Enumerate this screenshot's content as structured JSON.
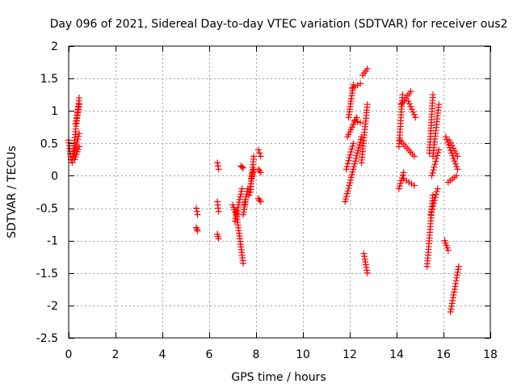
{
  "chart_data": {
    "type": "scatter",
    "title": "Day 096 of 2021, Sidereal Day-to-day VTEC variation (SDTVAR) for receiver ous2",
    "xlabel": "GPS time / hours",
    "ylabel": "SDTVAR / TECUs",
    "xlim": [
      0,
      18
    ],
    "ylim": [
      -2.5,
      2
    ],
    "xticks": [
      0,
      2,
      4,
      6,
      8,
      10,
      12,
      14,
      16,
      18
    ],
    "yticks": [
      2,
      1.5,
      1,
      0.5,
      0,
      -0.5,
      -1,
      -1.5,
      -2,
      -2.5
    ],
    "xtick_labels": [
      "0",
      "2",
      "4",
      "6",
      "8",
      "10",
      "12",
      "14",
      "16",
      "18"
    ],
    "ytick_labels": [
      "2",
      "1.5",
      "1",
      "0.5",
      "0",
      "-0.5",
      "-1",
      "-1.5",
      "-2",
      "-2.5"
    ],
    "grid": true,
    "marker": "+",
    "color": "#ff0000",
    "series": [
      {
        "name": "SDTVAR",
        "segments": [
          {
            "x": [
              0.0,
              0.1
            ],
            "y": [
              0.55,
              0.25
            ]
          },
          {
            "x": [
              0.15,
              0.45
            ],
            "y": [
              0.2,
              1.2
            ]
          },
          {
            "x": [
              0.2,
              0.45
            ],
            "y": [
              0.3,
              0.65
            ]
          },
          {
            "x": [
              0.25,
              0.45
            ],
            "y": [
              0.25,
              0.45
            ]
          },
          {
            "x": [
              0.3,
              0.45
            ],
            "y": [
              0.8,
              1.1
            ]
          },
          {
            "x": [
              5.45,
              5.5
            ],
            "y": [
              -0.5,
              -0.6
            ]
          },
          {
            "x": [
              5.45,
              5.5
            ],
            "y": [
              -0.8,
              -0.85
            ]
          },
          {
            "x": [
              6.35,
              6.4
            ],
            "y": [
              0.2,
              0.1
            ]
          },
          {
            "x": [
              6.35,
              6.4
            ],
            "y": [
              -0.4,
              -0.55
            ]
          },
          {
            "x": [
              6.35,
              6.4
            ],
            "y": [
              -0.9,
              -0.97
            ]
          },
          {
            "x": [
              7.0,
              7.15
            ],
            "y": [
              -0.45,
              -0.6
            ]
          },
          {
            "x": [
              7.15,
              7.45
            ],
            "y": [
              -0.55,
              -1.35
            ]
          },
          {
            "x": [
              7.1,
              7.4
            ],
            "y": [
              -0.7,
              -0.2
            ]
          },
          {
            "x": [
              7.35,
              7.45
            ],
            "y": [
              0.15,
              0.12
            ]
          },
          {
            "x": [
              7.45,
              7.55
            ],
            "y": [
              -0.6,
              -0.4
            ]
          },
          {
            "x": [
              7.5,
              7.65
            ],
            "y": [
              -0.45,
              -0.2
            ]
          },
          {
            "x": [
              7.7,
              7.85
            ],
            "y": [
              -0.3,
              0.05
            ]
          },
          {
            "x": [
              7.75,
              7.9
            ],
            "y": [
              -0.25,
              0.3
            ]
          },
          {
            "x": [
              7.8,
              7.9
            ],
            "y": [
              -0.05,
              0.1
            ]
          },
          {
            "x": [
              8.1,
              8.2
            ],
            "y": [
              0.4,
              0.3
            ]
          },
          {
            "x": [
              8.1,
              8.2
            ],
            "y": [
              0.1,
              0.05
            ]
          },
          {
            "x": [
              8.1,
              8.2
            ],
            "y": [
              -0.35,
              -0.4
            ]
          },
          {
            "x": [
              11.8,
              12.5
            ],
            "y": [
              -0.4,
              0.6
            ]
          },
          {
            "x": [
              11.85,
              12.15
            ],
            "y": [
              0.1,
              0.5
            ]
          },
          {
            "x": [
              11.9,
              12.3
            ],
            "y": [
              0.6,
              0.9
            ]
          },
          {
            "x": [
              11.95,
              12.15
            ],
            "y": [
              0.9,
              1.4
            ]
          },
          {
            "x": [
              12.1,
              12.45
            ],
            "y": [
              1.35,
              1.42
            ]
          },
          {
            "x": [
              12.2,
              12.45
            ],
            "y": [
              0.85,
              0.82
            ]
          },
          {
            "x": [
              12.5,
              12.75
            ],
            "y": [
              0.2,
              1.1
            ]
          },
          {
            "x": [
              12.55,
              12.75
            ],
            "y": [
              1.55,
              1.65
            ]
          },
          {
            "x": [
              12.6,
              12.75
            ],
            "y": [
              -1.2,
              -1.5
            ]
          },
          {
            "x": [
              14.1,
              14.3
            ],
            "y": [
              -0.2,
              0.05
            ]
          },
          {
            "x": [
              14.1,
              14.25
            ],
            "y": [
              0.45,
              1.25
            ]
          },
          {
            "x": [
              14.15,
              14.75
            ],
            "y": [
              0.55,
              0.3
            ]
          },
          {
            "x": [
              14.2,
              14.6
            ],
            "y": [
              1.1,
              1.3
            ]
          },
          {
            "x": [
              14.3,
              14.75
            ],
            "y": [
              -0.05,
              -0.15
            ]
          },
          {
            "x": [
              14.5,
              14.8
            ],
            "y": [
              1.15,
              0.9
            ]
          },
          {
            "x": [
              15.3,
              15.55
            ],
            "y": [
              -1.4,
              -0.3
            ]
          },
          {
            "x": [
              15.4,
              15.55
            ],
            "y": [
              0.35,
              1.25
            ]
          },
          {
            "x": [
              15.45,
              15.75
            ],
            "y": [
              -0.6,
              -0.2
            ]
          },
          {
            "x": [
              15.5,
              15.8
            ],
            "y": [
              0.0,
              0.4
            ]
          },
          {
            "x": [
              15.55,
              15.8
            ],
            "y": [
              0.3,
              1.1
            ]
          },
          {
            "x": [
              16.05,
              16.2
            ],
            "y": [
              -1.0,
              -1.15
            ]
          },
          {
            "x": [
              16.1,
              16.6
            ],
            "y": [
              0.6,
              0.1
            ]
          },
          {
            "x": [
              16.2,
              16.55
            ],
            "y": [
              -0.1,
              0.0
            ]
          },
          {
            "x": [
              16.25,
              16.6
            ],
            "y": [
              0.55,
              0.3
            ]
          },
          {
            "x": [
              16.3,
              16.65
            ],
            "y": [
              -2.1,
              -1.4
            ]
          }
        ]
      }
    ]
  }
}
